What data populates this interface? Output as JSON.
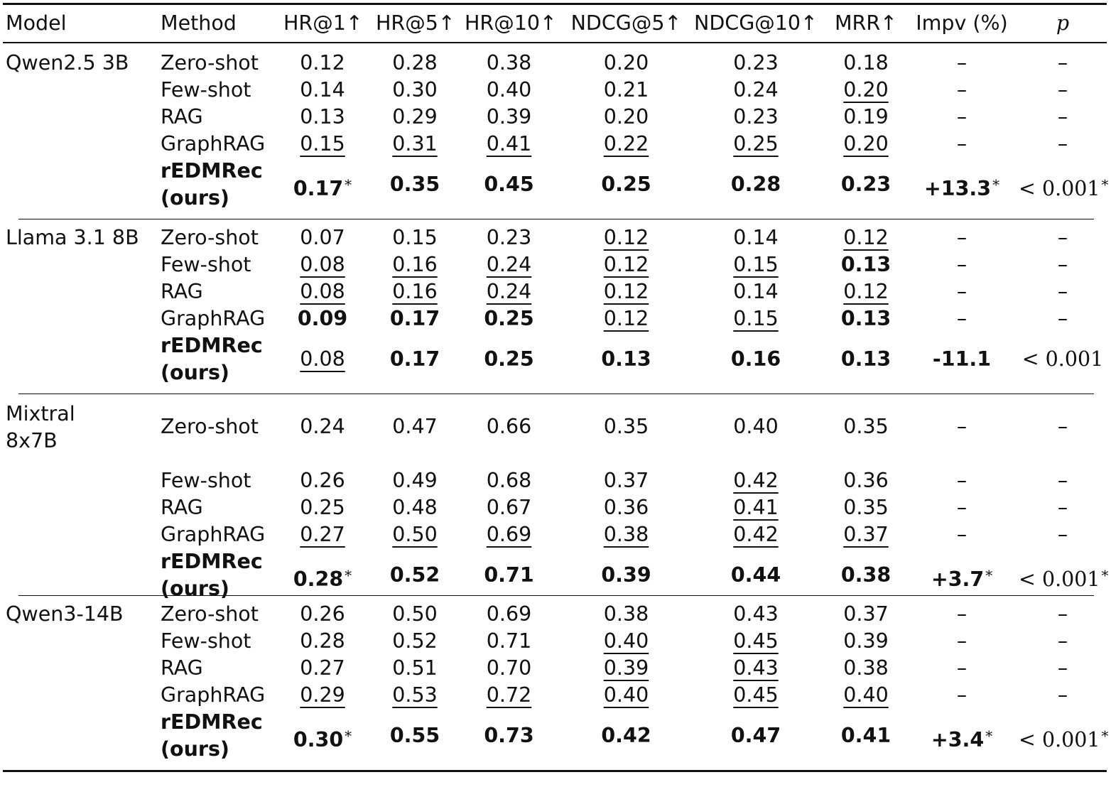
{
  "columns": [
    "Model",
    "Method",
    "HR@1↑",
    "HR@5↑",
    "HR@10↑",
    "NDCG@5↑",
    "NDCG@10↑",
    "MRR↑",
    "Impv (%)",
    "p"
  ],
  "groups": [
    {
      "model": "Qwen2.5 3B",
      "rows": [
        {
          "method": "Zero-shot",
          "values": [
            "0.12",
            "0.28",
            "0.38",
            "0.20",
            "0.23",
            "0.18"
          ],
          "impv": "–",
          "p": "–"
        },
        {
          "method": "Few-shot",
          "values": [
            "0.14",
            "0.30",
            "0.40",
            "0.21",
            "0.24",
            "0.20"
          ],
          "impv": "–",
          "p": "–"
        },
        {
          "method": "RAG",
          "values": [
            "0.13",
            "0.29",
            "0.39",
            "0.20",
            "0.23",
            "0.19"
          ],
          "impv": "–",
          "p": "–"
        },
        {
          "method": "GraphRAG",
          "values": [
            "0.15",
            "0.31",
            "0.41",
            "0.22",
            "0.25",
            "0.20"
          ],
          "impv": "–",
          "p": "–"
        },
        {
          "method": "rEDMRec (ours)",
          "values": [
            "0.17",
            "0.35",
            "0.45",
            "0.25",
            "0.28",
            "0.23"
          ],
          "impv": "+13.3",
          "p": "< 0.001"
        }
      ]
    },
    {
      "model": "Llama 3.1 8B",
      "rows": [
        {
          "method": "Zero-shot",
          "values": [
            "0.07",
            "0.15",
            "0.23",
            "0.12",
            "0.14",
            "0.12"
          ],
          "impv": "–",
          "p": "–"
        },
        {
          "method": "Few-shot",
          "values": [
            "0.08",
            "0.16",
            "0.24",
            "0.12",
            "0.15",
            "0.13"
          ],
          "impv": "–",
          "p": "–"
        },
        {
          "method": "RAG",
          "values": [
            "0.08",
            "0.16",
            "0.24",
            "0.12",
            "0.14",
            "0.12"
          ],
          "impv": "–",
          "p": "–"
        },
        {
          "method": "GraphRAG",
          "values": [
            "0.09",
            "0.17",
            "0.25",
            "0.12",
            "0.15",
            "0.13"
          ],
          "impv": "–",
          "p": "–"
        },
        {
          "method": "rEDMRec (ours)",
          "values": [
            "0.08",
            "0.17",
            "0.25",
            "0.13",
            "0.16",
            "0.13"
          ],
          "impv": "-11.1",
          "p": "< 0.001"
        }
      ]
    },
    {
      "model": "Mixtral 8x7B",
      "rows": [
        {
          "method": "Zero-shot",
          "values": [
            "0.24",
            "0.47",
            "0.66",
            "0.35",
            "0.40",
            "0.35"
          ],
          "impv": "–",
          "p": "–"
        },
        {
          "method": "Few-shot",
          "values": [
            "0.26",
            "0.49",
            "0.68",
            "0.37",
            "0.42",
            "0.36"
          ],
          "impv": "–",
          "p": "–"
        },
        {
          "method": "RAG",
          "values": [
            "0.25",
            "0.48",
            "0.67",
            "0.36",
            "0.41",
            "0.35"
          ],
          "impv": "–",
          "p": "–"
        },
        {
          "method": "GraphRAG",
          "values": [
            "0.27",
            "0.50",
            "0.69",
            "0.38",
            "0.42",
            "0.37"
          ],
          "impv": "–",
          "p": "–"
        },
        {
          "method": "rEDMRec (ours)",
          "values": [
            "0.28",
            "0.52",
            "0.71",
            "0.39",
            "0.44",
            "0.38"
          ],
          "impv": "+3.7",
          "p": "< 0.001"
        }
      ]
    },
    {
      "model": "Qwen3-14B",
      "rows": [
        {
          "method": "Zero-shot",
          "values": [
            "0.26",
            "0.50",
            "0.69",
            "0.38",
            "0.43",
            "0.37"
          ],
          "impv": "–",
          "p": "–"
        },
        {
          "method": "Few-shot",
          "values": [
            "0.28",
            "0.52",
            "0.71",
            "0.40",
            "0.45",
            "0.39"
          ],
          "impv": "–",
          "p": "–"
        },
        {
          "method": "RAG",
          "values": [
            "0.27",
            "0.51",
            "0.70",
            "0.39",
            "0.43",
            "0.38"
          ],
          "impv": "–",
          "p": "–"
        },
        {
          "method": "GraphRAG",
          "values": [
            "0.29",
            "0.53",
            "0.72",
            "0.40",
            "0.45",
            "0.40"
          ],
          "impv": "–",
          "p": "–"
        },
        {
          "method": "rEDMRec (ours)",
          "values": [
            "0.30",
            "0.55",
            "0.73",
            "0.42",
            "0.47",
            "0.41"
          ],
          "impv": "+3.4",
          "p": "< 0.001"
        }
      ]
    }
  ],
  "underlined": [
    [
      [
        0,
        0,
        0,
        0,
        0,
        0
      ],
      [
        0,
        0,
        0,
        0,
        0,
        1
      ],
      [
        0,
        0,
        0,
        0,
        0,
        0
      ],
      [
        1,
        1,
        1,
        1,
        1,
        1
      ],
      [
        0,
        0,
        0,
        0,
        0,
        0
      ]
    ],
    [
      [
        0,
        0,
        0,
        1,
        0,
        1
      ],
      [
        1,
        1,
        1,
        1,
        1,
        0
      ],
      [
        1,
        1,
        1,
        1,
        0,
        1
      ],
      [
        0,
        0,
        0,
        1,
        1,
        0
      ],
      [
        1,
        0,
        0,
        0,
        0,
        0
      ]
    ],
    [
      [
        0,
        0,
        0,
        0,
        0,
        0
      ],
      [
        0,
        0,
        0,
        0,
        1,
        0
      ],
      [
        0,
        0,
        0,
        0,
        1,
        0
      ],
      [
        1,
        1,
        1,
        1,
        1,
        1
      ],
      [
        0,
        0,
        0,
        0,
        0,
        0
      ]
    ],
    [
      [
        0,
        0,
        0,
        0,
        0,
        0
      ],
      [
        0,
        0,
        0,
        1,
        1,
        0
      ],
      [
        0,
        0,
        0,
        1,
        1,
        0
      ],
      [
        1,
        1,
        1,
        1,
        1,
        1
      ],
      [
        0,
        0,
        0,
        0,
        0,
        0
      ]
    ]
  ],
  "bold": [
    [
      [
        0,
        0,
        0,
        0,
        0,
        0
      ],
      [
        0,
        0,
        0,
        0,
        0,
        0
      ],
      [
        0,
        0,
        0,
        0,
        0,
        0
      ],
      [
        0,
        0,
        0,
        0,
        0,
        0
      ],
      [
        1,
        1,
        1,
        1,
        1,
        1
      ]
    ],
    [
      [
        0,
        0,
        0,
        0,
        0,
        0
      ],
      [
        0,
        0,
        0,
        0,
        0,
        1
      ],
      [
        0,
        0,
        0,
        0,
        0,
        0
      ],
      [
        1,
        1,
        1,
        0,
        0,
        1
      ],
      [
        0,
        1,
        1,
        1,
        1,
        1
      ]
    ],
    [
      [
        0,
        0,
        0,
        0,
        0,
        0
      ],
      [
        0,
        0,
        0,
        0,
        0,
        0
      ],
      [
        0,
        0,
        0,
        0,
        0,
        0
      ],
      [
        0,
        0,
        0,
        0,
        0,
        0
      ],
      [
        1,
        1,
        1,
        1,
        1,
        1
      ]
    ],
    [
      [
        0,
        0,
        0,
        0,
        0,
        0
      ],
      [
        0,
        0,
        0,
        0,
        0,
        0
      ],
      [
        0,
        0,
        0,
        0,
        0,
        0
      ],
      [
        0,
        0,
        0,
        0,
        0,
        0
      ],
      [
        1,
        1,
        1,
        1,
        1,
        1
      ]
    ]
  ],
  "starred": {
    "hr1": [
      1,
      0,
      1,
      1
    ],
    "impv": [
      1,
      0,
      1,
      1
    ],
    "p": [
      1,
      0,
      1,
      1
    ]
  },
  "star_symbol": "*"
}
